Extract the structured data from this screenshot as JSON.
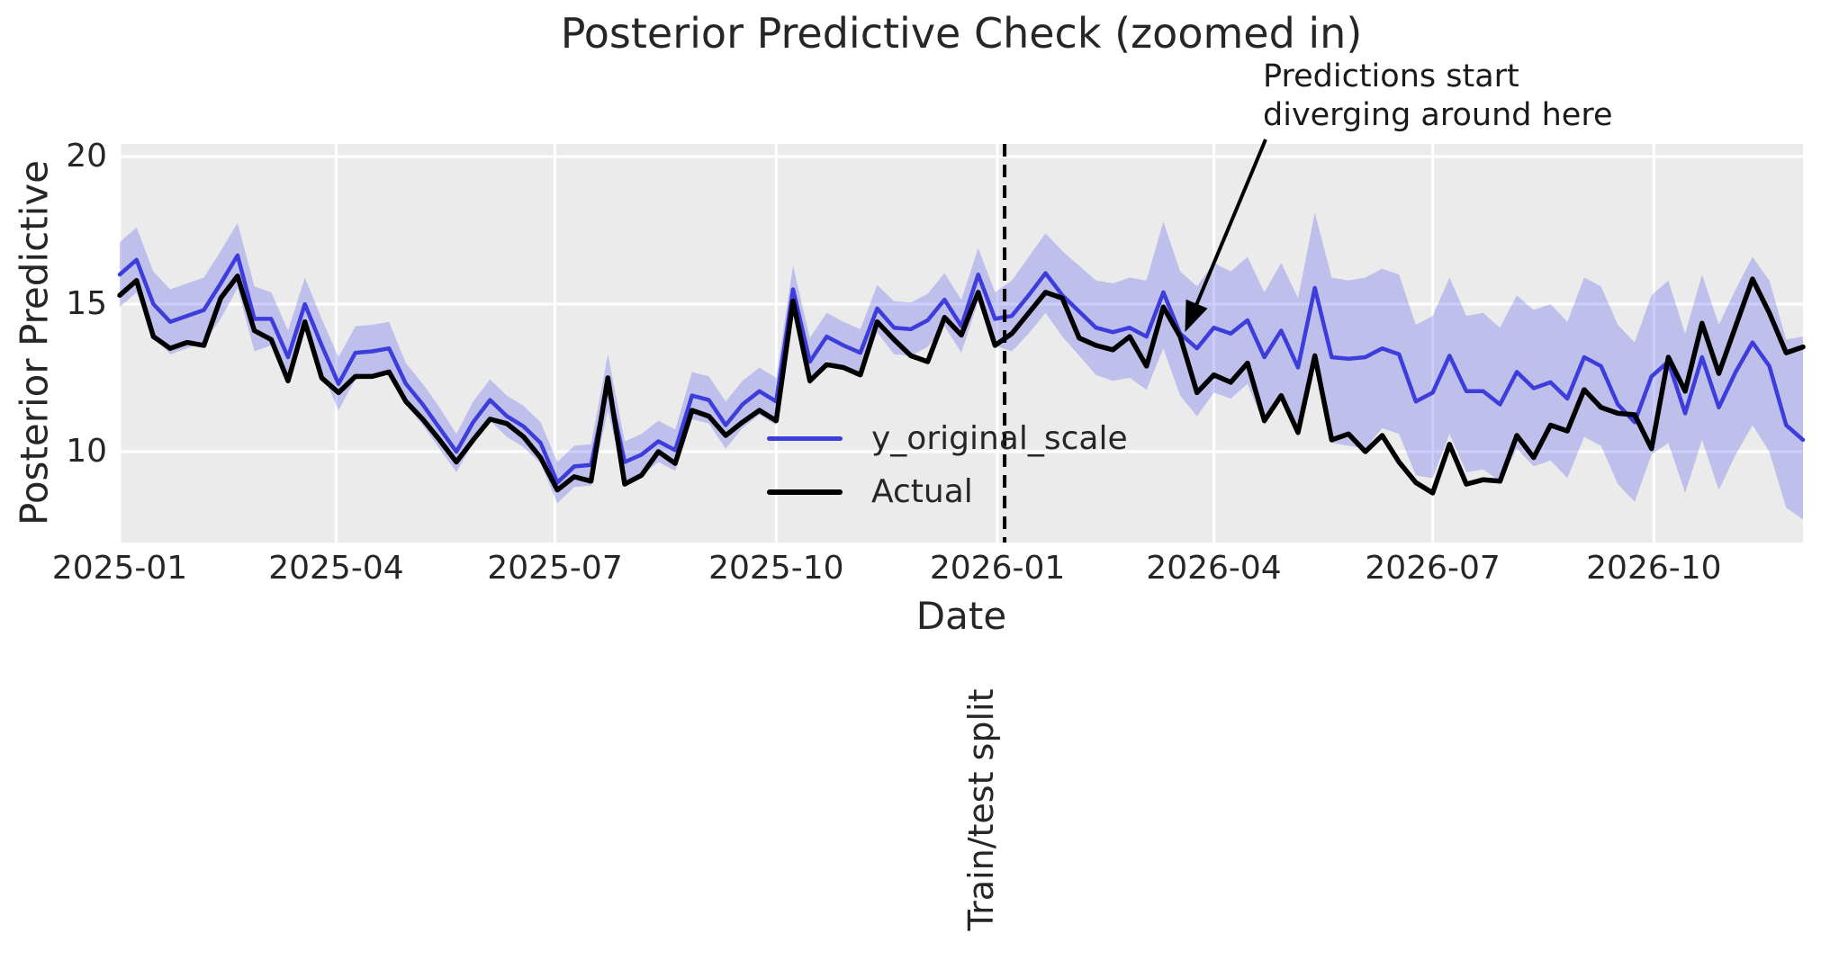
{
  "title": "Posterior Predictive Check (zoomed in)",
  "axes": {
    "xlabel": "Date",
    "ylabel": "Posterior Predictive",
    "x_ticks": [
      {
        "label": "2025-01",
        "date": "2025-01-01"
      },
      {
        "label": "2025-04",
        "date": "2025-04-01"
      },
      {
        "label": "2025-07",
        "date": "2025-07-01"
      },
      {
        "label": "2025-10",
        "date": "2025-10-01"
      },
      {
        "label": "2026-01",
        "date": "2026-01-01"
      },
      {
        "label": "2026-04",
        "date": "2026-04-01"
      },
      {
        "label": "2026-07",
        "date": "2026-07-01"
      },
      {
        "label": "2026-10",
        "date": "2026-10-01"
      }
    ],
    "y_ticks": [
      20,
      15,
      10
    ]
  },
  "legend": [
    {
      "label": "y_original_scale",
      "color": "#3d3ddc",
      "thickness": 5
    },
    {
      "label": "Actual",
      "color": "#000000",
      "thickness": 6
    }
  ],
  "annotation": {
    "line1": "Predictions start",
    "line2": "diverging around here",
    "target_date": "2026-03-20",
    "target_value": 14.05
  },
  "split": {
    "label": "Train/test split",
    "date": "2026-01-04"
  },
  "colors": {
    "plot_background": "#ebebeb",
    "grid": "#ffffff",
    "band_fill": "rgba(85,90,235,0.30)",
    "predicted": "#3d3ddc",
    "actual": "#000000",
    "text": "#262626"
  },
  "chart_data": {
    "type": "line",
    "title": "Posterior Predictive Check (zoomed in)",
    "xlabel": "Date",
    "ylabel": "Posterior Predictive",
    "ylim": [
      6.9,
      20.5
    ],
    "grid": true,
    "legend_position": "center",
    "start_date": "2025-01-01",
    "freq_days": 7,
    "series": [
      {
        "name": "y_original_scale",
        "color": "#3d3ddc",
        "values": [
          16.0,
          16.5,
          15.0,
          14.4,
          14.6,
          14.8,
          15.7,
          16.65,
          14.5,
          14.5,
          13.2,
          15.0,
          13.6,
          12.3,
          13.35,
          13.4,
          13.5,
          12.3,
          11.6,
          10.8,
          10.0,
          11.0,
          11.75,
          11.2,
          10.85,
          10.3,
          8.95,
          9.5,
          9.55,
          12.25,
          9.65,
          9.9,
          10.35,
          10.05,
          11.9,
          11.75,
          10.9,
          11.6,
          12.05,
          11.7,
          15.5,
          13.05,
          13.9,
          13.6,
          13.35,
          14.85,
          14.2,
          14.15,
          14.45,
          15.15,
          14.25,
          16.0,
          14.5,
          14.6,
          15.3,
          16.05,
          15.3,
          14.75,
          14.2,
          14.05,
          14.2,
          13.9,
          15.4,
          14.0,
          13.5,
          14.2,
          14.0,
          14.45,
          13.2,
          14.1,
          12.85,
          15.55,
          13.2,
          13.15,
          13.2,
          13.5,
          13.3,
          11.7,
          12.0,
          13.25,
          12.05,
          12.05,
          11.6,
          12.7,
          12.15,
          12.35,
          11.8,
          13.2,
          12.9,
          11.6,
          11.0,
          12.55,
          13.05,
          11.3,
          13.2,
          11.5,
          12.7,
          13.7,
          12.9,
          10.9,
          10.4
        ]
      },
      {
        "name": "Actual",
        "color": "#000000",
        "values": [
          15.3,
          15.8,
          13.9,
          13.5,
          13.7,
          13.6,
          15.2,
          15.95,
          14.1,
          13.8,
          12.4,
          14.4,
          12.5,
          12.0,
          12.55,
          12.55,
          12.7,
          11.7,
          11.1,
          10.4,
          9.65,
          10.4,
          11.1,
          10.95,
          10.5,
          9.8,
          8.7,
          9.15,
          9.0,
          12.5,
          8.9,
          9.2,
          10.0,
          9.6,
          11.4,
          11.2,
          10.55,
          11.0,
          11.4,
          11.05,
          15.1,
          12.4,
          12.95,
          12.85,
          12.6,
          14.4,
          13.8,
          13.25,
          13.05,
          14.55,
          13.95,
          15.4,
          13.6,
          14.0,
          14.7,
          15.4,
          15.2,
          13.85,
          13.6,
          13.45,
          13.9,
          12.9,
          14.9,
          13.9,
          12.0,
          12.6,
          12.35,
          13.0,
          11.05,
          11.9,
          10.65,
          13.25,
          10.4,
          10.6,
          10.0,
          10.55,
          9.65,
          8.95,
          8.6,
          10.25,
          8.9,
          9.05,
          9.0,
          10.55,
          9.8,
          10.9,
          10.7,
          12.1,
          11.5,
          11.3,
          11.25,
          10.1,
          13.2,
          12.05,
          14.35,
          12.65,
          14.25,
          15.85,
          14.7,
          13.35,
          13.55
        ]
      }
    ],
    "band": {
      "name": "posterior predictive interval",
      "upper": [
        17.1,
        17.6,
        16.1,
        15.5,
        15.7,
        15.9,
        16.8,
        17.75,
        15.6,
        15.4,
        14.1,
        15.9,
        14.5,
        13.2,
        14.25,
        14.3,
        14.4,
        13.0,
        12.3,
        11.5,
        10.6,
        11.7,
        12.45,
        11.9,
        11.55,
        11.0,
        9.65,
        10.2,
        10.25,
        13.3,
        10.35,
        10.6,
        11.05,
        10.75,
        12.7,
        12.55,
        11.7,
        12.4,
        12.85,
        12.5,
        16.3,
        13.85,
        14.7,
        14.4,
        14.15,
        15.65,
        15.1,
        15.05,
        15.35,
        16.05,
        15.15,
        16.9,
        15.4,
        15.8,
        16.6,
        17.4,
        16.8,
        16.3,
        15.8,
        15.7,
        15.9,
        15.8,
        17.8,
        16.1,
        15.6,
        16.4,
        16.1,
        16.6,
        15.4,
        16.4,
        15.2,
        18.1,
        15.9,
        15.8,
        15.9,
        16.2,
        16.0,
        14.3,
        14.6,
        15.9,
        14.6,
        14.7,
        14.2,
        15.3,
        14.8,
        15.0,
        14.4,
        15.9,
        15.6,
        14.3,
        13.7,
        15.3,
        15.8,
        14.0,
        16.0,
        14.3,
        15.5,
        16.6,
        15.8,
        13.8,
        13.9
      ],
      "lower": [
        14.9,
        15.4,
        13.9,
        13.3,
        13.5,
        13.7,
        14.5,
        15.55,
        13.4,
        13.6,
        12.3,
        14.1,
        12.7,
        11.4,
        12.45,
        12.5,
        12.6,
        11.6,
        10.9,
        10.1,
        9.3,
        10.3,
        11.05,
        10.5,
        10.15,
        9.6,
        8.25,
        8.8,
        8.85,
        11.4,
        8.95,
        9.2,
        9.65,
        9.35,
        11.1,
        10.95,
        10.1,
        10.8,
        11.25,
        10.9,
        14.7,
        12.25,
        13.1,
        12.8,
        12.55,
        14.05,
        13.3,
        13.25,
        13.55,
        14.25,
        13.35,
        15.1,
        13.6,
        13.4,
        14.0,
        14.7,
        13.9,
        13.25,
        12.6,
        12.4,
        12.5,
        12.1,
        13.5,
        11.9,
        11.2,
        12.0,
        11.8,
        12.3,
        10.9,
        11.8,
        10.5,
        13.1,
        10.3,
        10.2,
        10.1,
        10.8,
        10.6,
        9.2,
        9.1,
        10.6,
        9.3,
        9.4,
        9.0,
        10.1,
        9.5,
        9.7,
        9.1,
        10.5,
        10.2,
        8.9,
        8.3,
        9.9,
        10.3,
        8.6,
        10.4,
        8.7,
        9.9,
        10.9,
        10.0,
        8.1,
        7.7
      ]
    }
  }
}
